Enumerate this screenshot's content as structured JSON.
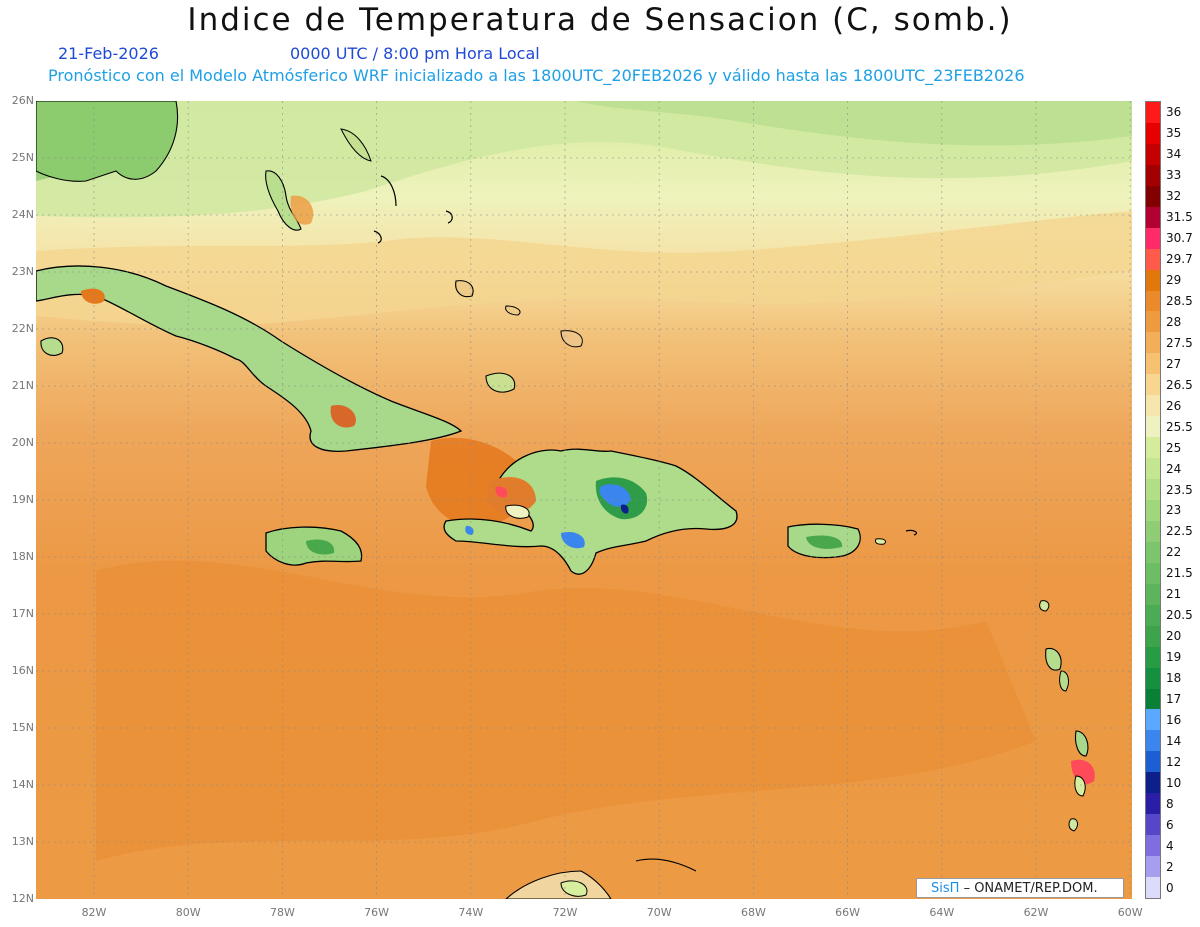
{
  "title": "Indice de Temperatura de Sensacion (C, somb.)",
  "subtitle": {
    "date": "21-Feb-2026",
    "time": "0000 UTC / 8:00 pm Hora Local",
    "model_info": "Pronóstico con el Modelo Atmósferico WRF inicializado a las 1800UTC_20FEB2026 y válido hasta las  1800UTC_23FEB2026"
  },
  "axes": {
    "latitudes": [
      "26N",
      "25N",
      "24N",
      "23N",
      "22N",
      "21N",
      "20N",
      "19N",
      "18N",
      "17N",
      "16N",
      "15N",
      "14N",
      "13N",
      "12N"
    ],
    "longitudes": [
      "82W",
      "80W",
      "78W",
      "76W",
      "74W",
      "72W",
      "70W",
      "68W",
      "66W",
      "64W",
      "62W",
      "60W"
    ]
  },
  "legend": {
    "labels": [
      "36",
      "35",
      "34",
      "33",
      "32",
      "31.5",
      "30.7",
      "29.7",
      "29",
      "28.5",
      "28",
      "27.5",
      "27",
      "26.5",
      "26",
      "25.5",
      "25",
      "24",
      "23.5",
      "23",
      "22.5",
      "22",
      "21.5",
      "21",
      "20.5",
      "20",
      "19",
      "18",
      "17",
      "16",
      "14",
      "12",
      "10",
      "8",
      "6",
      "4",
      "2",
      "0"
    ],
    "colors": [
      "#ff1a1a",
      "#e60000",
      "#c40000",
      "#a30000",
      "#820000",
      "#b30033",
      "#ff2a6a",
      "#ff5a4a",
      "#e0780a",
      "#eb8a2a",
      "#ee9a3e",
      "#f2ae58",
      "#f6c272",
      "#f8d690",
      "#f6e6ae",
      "#eef2c0",
      "#d4ec9c",
      "#c4e690",
      "#b2de86",
      "#a0d67c",
      "#8ecd74",
      "#7cc56c",
      "#6cbd64",
      "#5cb45c",
      "#4cac54",
      "#3ea44c",
      "#289c44",
      "#14903e",
      "#0a7f36",
      "#5aa8ff",
      "#3a86ee",
      "#1b5fd2",
      "#0c1f8a",
      "#2a1ea6",
      "#5646c8",
      "#7e6ee0",
      "#a89ef0",
      "#dcdcfa"
    ]
  },
  "credit": {
    "brand": "SisΠ",
    "org": "– ONAMET/REP.DOM."
  },
  "colors": {
    "title_blue": "#1f4ad6",
    "info_cyan": "#1ea0e6",
    "ocean_orange": "#ee9a3e",
    "land_green": "#8ecd74",
    "coast": "#000000"
  }
}
